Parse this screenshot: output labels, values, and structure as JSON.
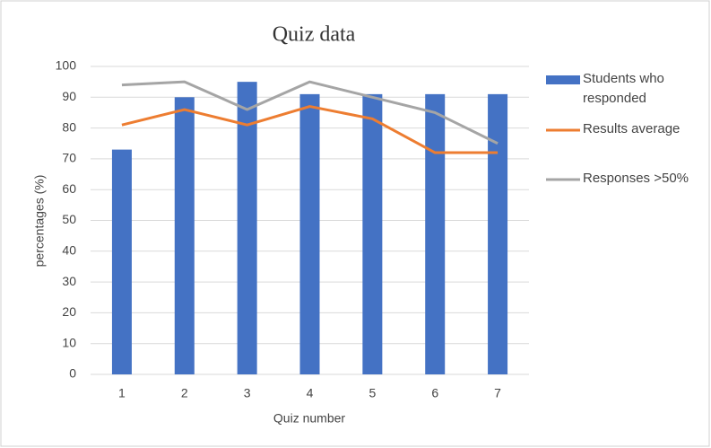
{
  "chart_data": {
    "type": "bar",
    "title": "Quiz data",
    "x_label": "Quiz number",
    "y_label": "percentages (%)",
    "categories": [
      "1",
      "2",
      "3",
      "4",
      "5",
      "6",
      "7"
    ],
    "series": [
      {
        "name": "Students who responded",
        "type": "bar",
        "color": "#4472c4",
        "values": [
          73,
          90,
          95,
          91,
          91,
          91,
          91
        ]
      },
      {
        "name": "Results average",
        "type": "line",
        "color": "#ed7d31",
        "values": [
          81,
          86,
          81,
          87,
          83,
          72,
          72
        ]
      },
      {
        "name": "Responses >50%",
        "type": "line",
        "color": "#a5a5a5",
        "values": [
          94,
          95,
          86,
          95,
          90,
          85,
          75
        ]
      }
    ],
    "ylim": [
      0,
      100
    ],
    "yticks": [
      0,
      10,
      20,
      30,
      40,
      50,
      60,
      70,
      80,
      90,
      100
    ],
    "grid": true,
    "legend": "right"
  }
}
